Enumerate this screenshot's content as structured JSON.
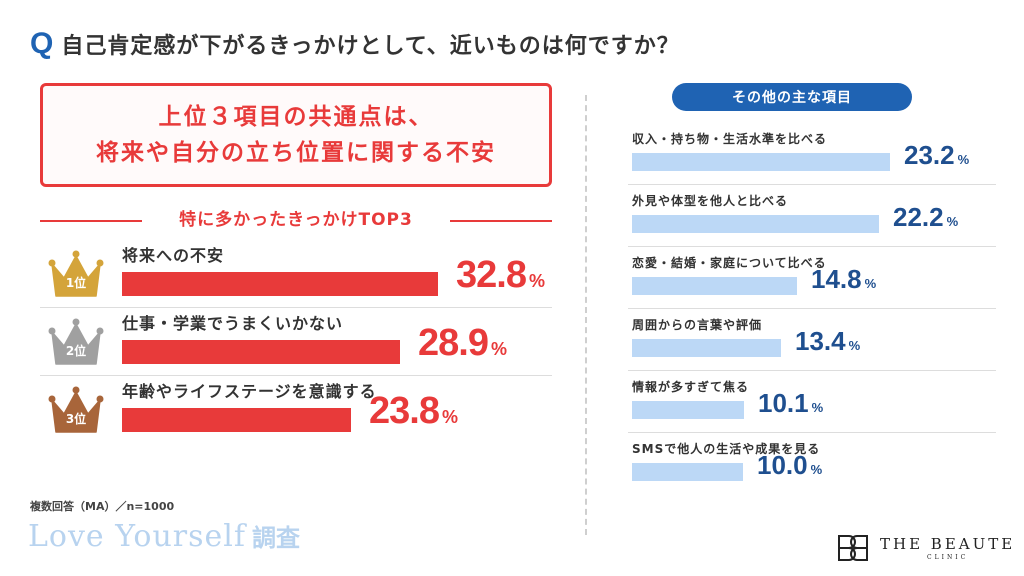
{
  "header": {
    "q_mark": "Q",
    "question": "自己肯定感が下がるきっかけとして、近いものは何ですか？"
  },
  "summary": {
    "line1": "上位３項目の共通点は、",
    "line2": "将来や自分の立ち位置に関する不安"
  },
  "top3_heading": "特に多かったきっかけTOP3",
  "colors": {
    "accent_red": "#e83a3a",
    "accent_blue": "#1f63b3",
    "bar_light_blue": "#bcd8f6",
    "gold": "#d4a43a",
    "silver": "#a0a0a0",
    "bronze": "#a8653a"
  },
  "chart_data": [
    {
      "type": "bar",
      "title": "特に多かったきっかけTOP3",
      "orientation": "horizontal",
      "categories": [
        "将来への不安",
        "仕事・学業でうまくいかない",
        "年齢やライフステージを意識する"
      ],
      "ranks": [
        "1位",
        "2位",
        "3位"
      ],
      "values": [
        32.8,
        28.9,
        23.8
      ],
      "unit": "%"
    },
    {
      "type": "bar",
      "title": "その他の主な項目",
      "orientation": "horizontal",
      "categories": [
        "収入・持ち物・生活水準を比べる",
        "外見や体型を他人と比べる",
        "恋愛・結婚・家庭について比べる",
        "周囲からの言葉や評価",
        "情報が多すぎて焦る",
        "SMSで他人の生活や成果を見る"
      ],
      "values": [
        23.2,
        22.2,
        14.8,
        13.4,
        10.1,
        10.0
      ],
      "unit": "%"
    }
  ],
  "footer": {
    "note": "複数回答（MA）／n=1000",
    "survey_en": "Love Yourself",
    "survey_jp": "調査",
    "brand_name": "THE BEAUTE",
    "brand_sub": "CLINIC"
  }
}
